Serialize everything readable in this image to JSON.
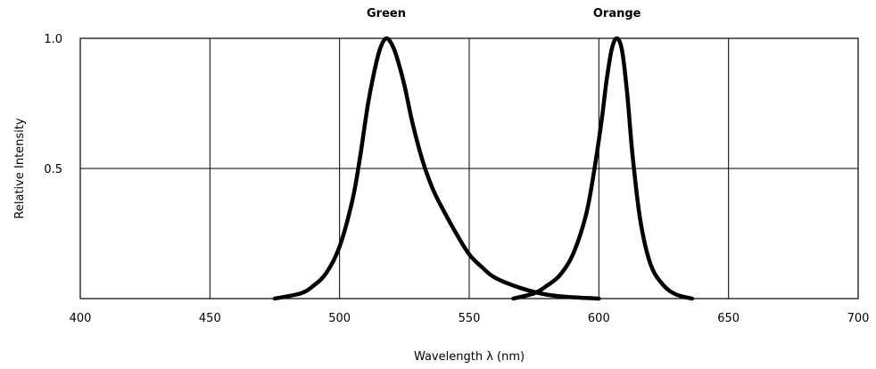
{
  "chart_data": {
    "type": "line",
    "title": "",
    "xlabel": "Wavelength λ (nm)",
    "ylabel": "Relative Intensity",
    "xlim": [
      400,
      700
    ],
    "ylim": [
      0,
      1.0
    ],
    "x_ticks": [
      "400",
      "450",
      "500",
      "550",
      "600",
      "650",
      "700"
    ],
    "y_ticks": [
      "0.5",
      "1.0"
    ],
    "y_tick_values": [
      0.5,
      1.0
    ],
    "grid": true,
    "legend": "none",
    "series": [
      {
        "name": "Green",
        "x": [
          475,
          485,
          490,
          495,
          500,
          505,
          508,
          511,
          514,
          516,
          518,
          520,
          522,
          525,
          528,
          532,
          536,
          540,
          545,
          550,
          555,
          560,
          570,
          580,
          590,
          600
        ],
        "y": [
          0.0,
          0.02,
          0.05,
          0.1,
          0.2,
          0.38,
          0.55,
          0.75,
          0.9,
          0.97,
          1.0,
          0.98,
          0.93,
          0.82,
          0.68,
          0.53,
          0.42,
          0.34,
          0.25,
          0.17,
          0.12,
          0.08,
          0.04,
          0.015,
          0.005,
          0.0
        ]
      },
      {
        "name": "Orange",
        "x": [
          567,
          575,
          580,
          585,
          590,
          595,
          598,
          601,
          603,
          605,
          607,
          609,
          611,
          613,
          616,
          620,
          625,
          630,
          636
        ],
        "y": [
          0.0,
          0.02,
          0.05,
          0.09,
          0.17,
          0.32,
          0.48,
          0.68,
          0.84,
          0.96,
          1.0,
          0.95,
          0.78,
          0.55,
          0.3,
          0.13,
          0.05,
          0.015,
          0.0
        ]
      }
    ]
  }
}
